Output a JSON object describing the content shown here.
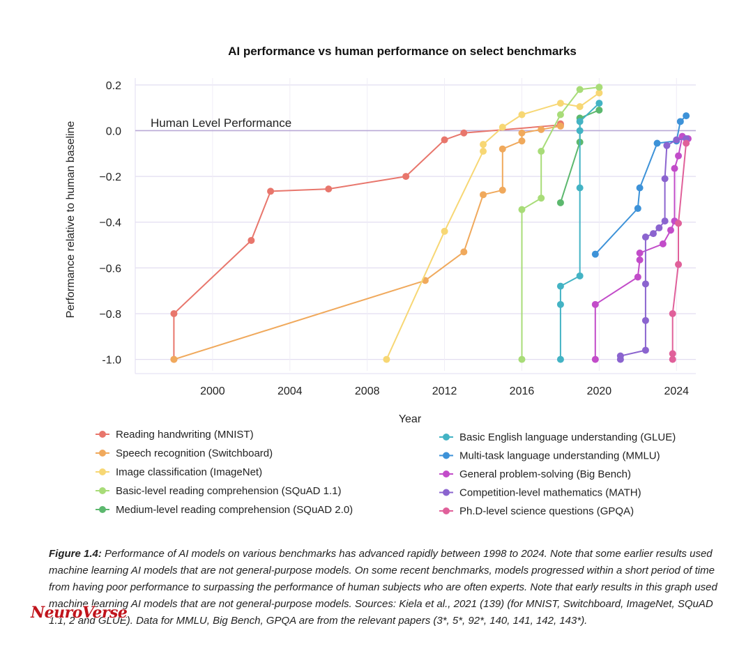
{
  "chart_data": {
    "type": "line",
    "title": "AI performance vs human performance on select benchmarks",
    "xlabel": "Year",
    "ylabel": "Performance relative to human baseline",
    "xlim": [
      1996,
      2025
    ],
    "ylim": [
      -1.05,
      0.23
    ],
    "x_ticks": [
      2000,
      2004,
      2008,
      2012,
      2016,
      2020,
      2024
    ],
    "y_ticks": [
      0.2,
      0.0,
      -0.2,
      -0.4,
      -0.6,
      -0.8,
      -1.0
    ],
    "y_tick_labels": [
      "0.2",
      "0.0",
      "−0.2",
      "−0.4",
      "−0.6",
      "−0.8",
      "-1.0"
    ],
    "grid": true,
    "reference_line": {
      "y": 0.0,
      "label": "Human Level Performance"
    },
    "legend_position": "bottom",
    "series": [
      {
        "name": "Reading handwriting (MNIST)",
        "color": "#e8766c",
        "points": [
          [
            1998,
            -1.0
          ],
          [
            1998,
            -0.8
          ],
          [
            2002,
            -0.48
          ],
          [
            2003,
            -0.265
          ],
          [
            2006,
            -0.255
          ],
          [
            2010,
            -0.2
          ],
          [
            2012,
            -0.04
          ],
          [
            2013,
            -0.01
          ],
          [
            2018,
            0.025
          ],
          [
            2018,
            0.03
          ]
        ]
      },
      {
        "name": "Speech recognition (Switchboard)",
        "color": "#f0a95c",
        "points": [
          [
            1998,
            -1.0
          ],
          [
            2011,
            -0.655
          ],
          [
            2013,
            -0.53
          ],
          [
            2014,
            -0.28
          ],
          [
            2015,
            -0.26
          ],
          [
            2015,
            -0.08
          ],
          [
            2016,
            -0.045
          ],
          [
            2016,
            -0.01
          ],
          [
            2017,
            0.005
          ],
          [
            2018,
            0.02
          ]
        ]
      },
      {
        "name": "Image classification (ImageNet)",
        "color": "#f7d774",
        "points": [
          [
            2009,
            -1.0
          ],
          [
            2012,
            -0.44
          ],
          [
            2014,
            -0.09
          ],
          [
            2014,
            -0.06
          ],
          [
            2015,
            0.015
          ],
          [
            2016,
            0.07
          ],
          [
            2018,
            0.12
          ],
          [
            2019,
            0.105
          ],
          [
            2020,
            0.165
          ]
        ]
      },
      {
        "name": "Basic-level reading comprehension (SQuAD 1.1)",
        "color": "#a8dc78",
        "points": [
          [
            2016,
            -1.0
          ],
          [
            2016,
            -0.345
          ],
          [
            2017,
            -0.295
          ],
          [
            2017,
            -0.09
          ],
          [
            2018,
            0.07
          ],
          [
            2019,
            0.18
          ],
          [
            2020,
            0.19
          ]
        ]
      },
      {
        "name": "Medium-level reading comprehension (SQuAD 2.0)",
        "color": "#5cb86e",
        "points": [
          [
            2018,
            -0.315
          ],
          [
            2019,
            -0.05
          ],
          [
            2019,
            0.055
          ],
          [
            2020,
            0.09
          ]
        ]
      },
      {
        "name": "Basic English language understanding (GLUE)",
        "color": "#43b3c4",
        "points": [
          [
            2018,
            -1.0
          ],
          [
            2018,
            -0.76
          ],
          [
            2018,
            -0.68
          ],
          [
            2019,
            -0.635
          ],
          [
            2019,
            -0.25
          ],
          [
            2019,
            0.0
          ],
          [
            2019,
            0.04
          ],
          [
            2020,
            0.12
          ]
        ]
      },
      {
        "name": "Multi-task language understanding (MMLU)",
        "color": "#3d92d8",
        "points": [
          [
            2019.8,
            -0.54
          ],
          [
            2022,
            -0.34
          ],
          [
            2022.1,
            -0.25
          ],
          [
            2023,
            -0.055
          ],
          [
            2024,
            -0.045
          ],
          [
            2024.2,
            0.04
          ],
          [
            2024.5,
            0.065
          ]
        ]
      },
      {
        "name": "General problem-solving (Big Bench)",
        "color": "#c24cc9",
        "points": [
          [
            2019.8,
            -1.0
          ],
          [
            2019.8,
            -0.76
          ],
          [
            2022,
            -0.64
          ],
          [
            2022.1,
            -0.565
          ],
          [
            2022.1,
            -0.535
          ],
          [
            2023.3,
            -0.495
          ],
          [
            2023.7,
            -0.435
          ],
          [
            2023.9,
            -0.395
          ],
          [
            2023.9,
            -0.165
          ],
          [
            2024.1,
            -0.11
          ],
          [
            2024.3,
            -0.025
          ],
          [
            2024.6,
            -0.035
          ]
        ]
      },
      {
        "name": "Competition-level mathematics (MATH)",
        "color": "#8b64cf",
        "points": [
          [
            2021.1,
            -1.0
          ],
          [
            2021.1,
            -0.985
          ],
          [
            2022.4,
            -0.96
          ],
          [
            2022.4,
            -0.83
          ],
          [
            2022.4,
            -0.67
          ],
          [
            2022.4,
            -0.465
          ],
          [
            2022.8,
            -0.45
          ],
          [
            2023.1,
            -0.425
          ],
          [
            2023.4,
            -0.395
          ],
          [
            2023.4,
            -0.21
          ],
          [
            2023.5,
            -0.065
          ],
          [
            2024,
            -0.04
          ],
          [
            2024.5,
            -0.035
          ]
        ]
      },
      {
        "name": "Ph.D-level science questions (GPQA)",
        "color": "#e0609a",
        "points": [
          [
            2023.8,
            -1.0
          ],
          [
            2023.8,
            -0.975
          ],
          [
            2023.8,
            -0.8
          ],
          [
            2024.1,
            -0.585
          ],
          [
            2024.1,
            -0.405
          ],
          [
            2024.5,
            -0.055
          ]
        ]
      }
    ]
  },
  "caption": {
    "label": "Figure 1.4:",
    "text": "Performance of AI models on various benchmarks has advanced rapidly between 1998 to 2024. Note that some earlier results used machine learning AI models that are not general-purpose models. On some recent benchmarks, models progressed within a short period of time from having poor performance to surpassing the performance of human subjects who are often experts. Note that early results in this graph used machine learning AI models that are not general-purpose models. Sources: Kiela et al., 2021 (139) (for MNIST, Switchboard, ImageNet, SQuAD 1.1, 2 and GLUE). Data for MMLU, Big Bench, GPQA are from the relevant papers (3*, 5*, 92*, 140, 141, 142, 143*)."
  },
  "watermark": "NeuroVerse"
}
